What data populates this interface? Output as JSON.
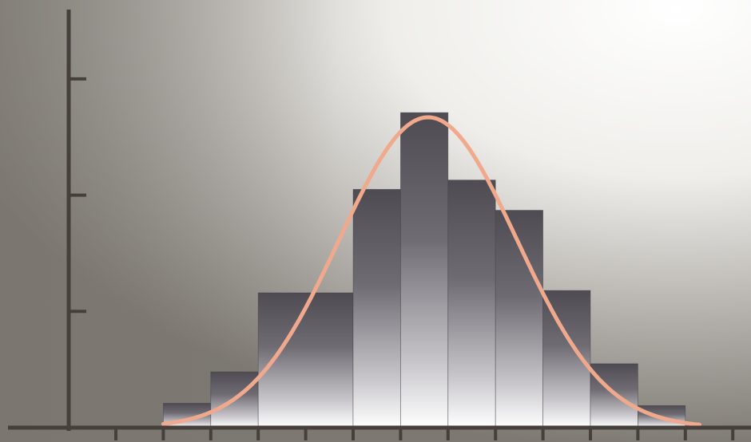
{
  "chart_data": {
    "type": "bar",
    "subtype": "histogram-with-normal-curve-overlay",
    "title": "",
    "xlabel": "",
    "ylabel": "",
    "x_tick_count": 14,
    "y_tick_count": 3,
    "y_tick_values": [
      1,
      2,
      3
    ],
    "ylim": [
      0,
      3
    ],
    "grid": false,
    "legend": "none",
    "bins": [
      {
        "x0": 1,
        "x1": 2,
        "value": 0.21
      },
      {
        "x0": 2,
        "x1": 3,
        "value": 0.48
      },
      {
        "x0": 3,
        "x1": 5,
        "value": 1.16
      },
      {
        "x0": 5,
        "x1": 6,
        "value": 2.05
      },
      {
        "x0": 6,
        "x1": 7,
        "value": 2.71
      },
      {
        "x0": 7,
        "x1": 8,
        "value": 2.13
      },
      {
        "x0": 8,
        "x1": 9,
        "value": 1.87
      },
      {
        "x0": 9,
        "x1": 10,
        "value": 1.18
      },
      {
        "x0": 10,
        "x1": 11,
        "value": 0.55
      },
      {
        "x0": 11,
        "x1": 12,
        "value": 0.19
      }
    ],
    "curve": {
      "kind": "normal",
      "mean": 6.58,
      "sd": 1.87,
      "peak": 2.67,
      "x_range": [
        1,
        12.3
      ]
    },
    "colors": {
      "background_dark": "#8a857f",
      "background_light": "#fbfbf8",
      "bar_top": "#58545c",
      "bar_bottom": "#ffffff",
      "bar_edge": "#3f3b42",
      "curve": "#f0a98d",
      "axis": "#45403b"
    }
  }
}
